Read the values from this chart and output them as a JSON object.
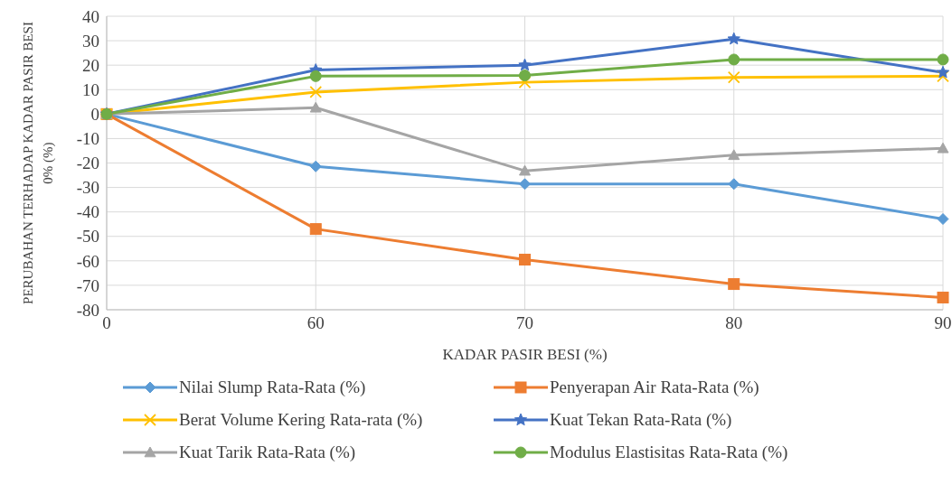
{
  "chart_data": {
    "type": "line",
    "xlabel": "KADAR PASIR BESI (%)",
    "ylabel": "PERUBAHAN TERHADAP KADAR PASIR BESI 0% (%)",
    "categories": [
      "0",
      "60",
      "70",
      "80",
      "90"
    ],
    "series": [
      {
        "name": "Nilai Slump Rata-Rata (%)",
        "color": "#5b9bd5",
        "marker": "diamond",
        "values": [
          0,
          -21.4,
          -28.6,
          -28.6,
          -42.9
        ]
      },
      {
        "name": "Penyerapan Air Rata-Rata (%)",
        "color": "#ed7d31",
        "marker": "square",
        "values": [
          0,
          -47,
          -59.5,
          -69.5,
          -75
        ]
      },
      {
        "name": "Berat Volume Kering Rata-rata (%)",
        "color": "#ffc000",
        "marker": "cross",
        "values": [
          0,
          9,
          13,
          15,
          15.5
        ]
      },
      {
        "name": "Kuat Tekan Rata-Rata (%)",
        "color": "#4472c4",
        "marker": "star",
        "values": [
          0,
          18,
          20,
          30.7,
          17
        ]
      },
      {
        "name": "Kuat Tarik Rata-Rata (%)",
        "color": "#a5a5a5",
        "marker": "triangle",
        "values": [
          0,
          2.6,
          -23.2,
          -16.8,
          -14
        ]
      },
      {
        "name": "Modulus Elastisitas Rata-Rata (%)",
        "color": "#70ad47",
        "marker": "circle",
        "values": [
          0,
          15.5,
          15.8,
          22.3,
          22.3
        ]
      }
    ],
    "ylim": [
      -80,
      40
    ],
    "yticks": [
      -80,
      -70,
      -60,
      -50,
      -40,
      -30,
      -20,
      -10,
      0,
      10,
      20,
      30,
      40
    ],
    "grid": true,
    "legend": "bottom"
  }
}
